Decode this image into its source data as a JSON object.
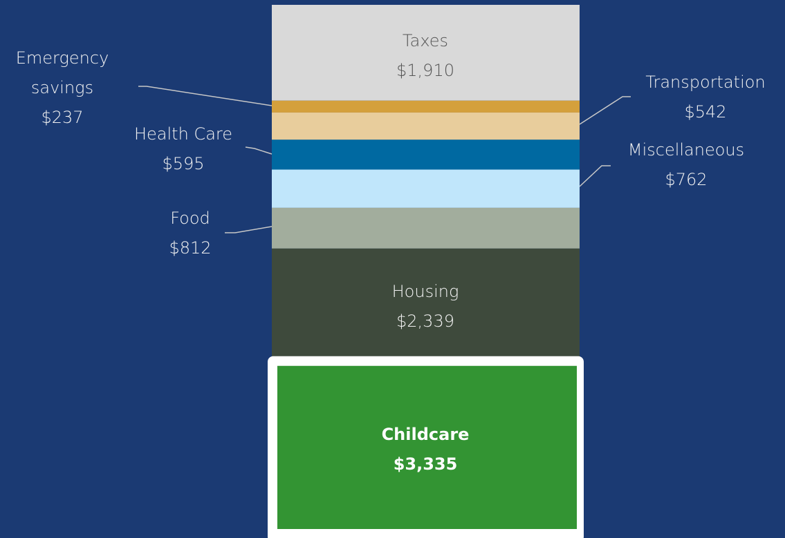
{
  "chart_data": {
    "type": "stacked_bar",
    "series": [
      {
        "name": "Taxes",
        "color": "#d9d9d9",
        "values": [
          1910
        ],
        "value_labels": [
          "$1,910"
        ]
      },
      {
        "name": "Emergency savings",
        "color": "#d4a03c",
        "values": [
          237
        ],
        "value_labels": [
          "$237"
        ]
      },
      {
        "name": "Transportation",
        "color": "#e8cd9c",
        "values": [
          542
        ],
        "value_labels": [
          "$542"
        ]
      },
      {
        "name": "Health Care",
        "color": "#0069a1",
        "values": [
          595
        ],
        "value_labels": [
          "$595"
        ]
      },
      {
        "name": "Miscellaneous",
        "color": "#c0e6fb",
        "values": [
          762
        ],
        "value_labels": [
          "$762"
        ]
      },
      {
        "name": "Food",
        "color": "#a2ad9d",
        "values": [
          812
        ],
        "value_labels": [
          "$812"
        ]
      },
      {
        "name": "Housing",
        "color": "#3e4a3c",
        "values": [
          2339
        ],
        "value_labels": [
          "$2,339"
        ]
      },
      {
        "name": "Childcare",
        "color": "#339433",
        "values": [
          3335
        ],
        "value_labels": [
          "$3,335"
        ]
      }
    ]
  }
}
